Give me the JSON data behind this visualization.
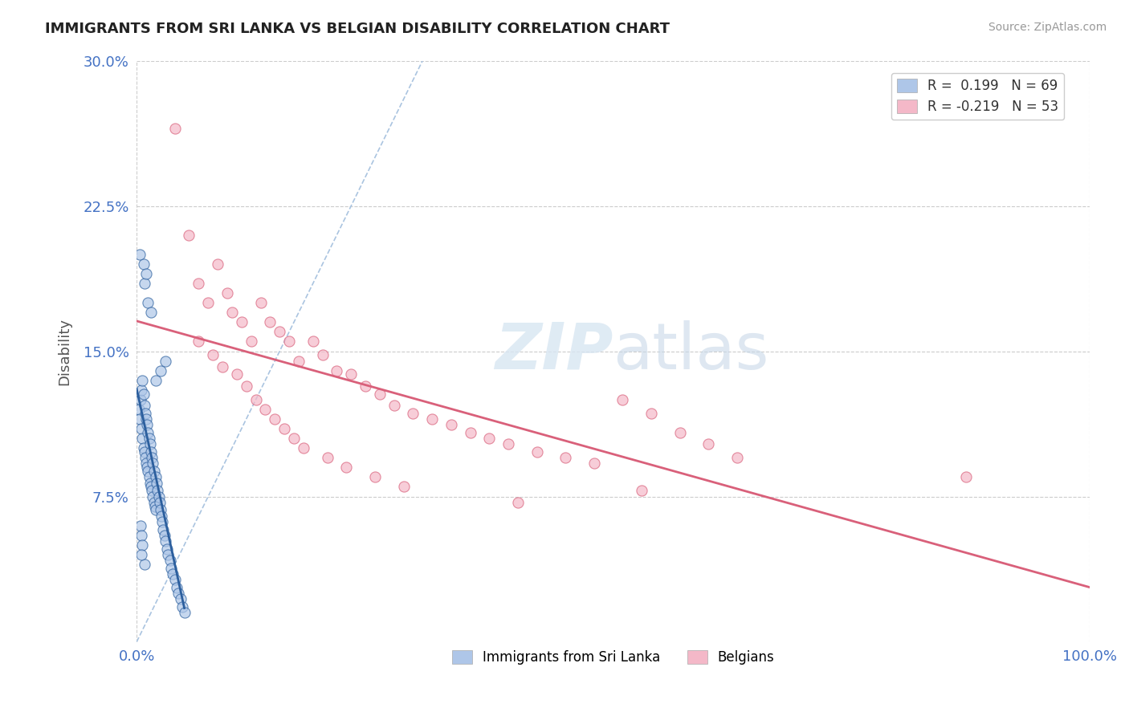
{
  "title": "IMMIGRANTS FROM SRI LANKA VS BELGIAN DISABILITY CORRELATION CHART",
  "source": "Source: ZipAtlas.com",
  "ylabel": "Disability",
  "watermark": "ZIPatlas",
  "legend_label_1": "Immigrants from Sri Lanka",
  "legend_label_2": "Belgians",
  "r1": 0.199,
  "n1": 69,
  "r2": -0.219,
  "n2": 53,
  "xlim": [
    0.0,
    1.0
  ],
  "ylim": [
    0.0,
    0.3
  ],
  "yticks": [
    0.075,
    0.15,
    0.225,
    0.3
  ],
  "ytick_labels": [
    "7.5%",
    "15.0%",
    "22.5%",
    "30.0%"
  ],
  "xticks": [
    0.0,
    1.0
  ],
  "xtick_labels": [
    "0.0%",
    "100.0%"
  ],
  "color_blue": "#aec6e8",
  "color_pink": "#f4b8c8",
  "trendline_blue": "#2c5f9e",
  "trendline_pink": "#d9607a",
  "background_color": "#ffffff",
  "grid_color": "#cccccc",
  "title_color": "#222222",
  "axis_label_color": "#4472c4",
  "blue_scatter_x": [
    0.002,
    0.003,
    0.004,
    0.005,
    0.005,
    0.006,
    0.006,
    0.007,
    0.007,
    0.008,
    0.008,
    0.009,
    0.009,
    0.01,
    0.01,
    0.011,
    0.011,
    0.012,
    0.012,
    0.013,
    0.013,
    0.014,
    0.014,
    0.015,
    0.015,
    0.016,
    0.016,
    0.017,
    0.017,
    0.018,
    0.018,
    0.019,
    0.02,
    0.02,
    0.021,
    0.022,
    0.023,
    0.024,
    0.025,
    0.026,
    0.027,
    0.028,
    0.029,
    0.03,
    0.032,
    0.033,
    0.035,
    0.036,
    0.038,
    0.04,
    0.042,
    0.044,
    0.046,
    0.048,
    0.05,
    0.003,
    0.007,
    0.008,
    0.01,
    0.012,
    0.015,
    0.004,
    0.005,
    0.006,
    0.02,
    0.025,
    0.03,
    0.008,
    0.005
  ],
  "blue_scatter_y": [
    0.12,
    0.115,
    0.125,
    0.11,
    0.13,
    0.105,
    0.135,
    0.1,
    0.128,
    0.098,
    0.122,
    0.095,
    0.118,
    0.092,
    0.115,
    0.09,
    0.112,
    0.088,
    0.108,
    0.085,
    0.105,
    0.082,
    0.102,
    0.08,
    0.098,
    0.078,
    0.095,
    0.075,
    0.092,
    0.072,
    0.088,
    0.07,
    0.085,
    0.068,
    0.082,
    0.078,
    0.075,
    0.072,
    0.068,
    0.065,
    0.062,
    0.058,
    0.055,
    0.052,
    0.048,
    0.045,
    0.042,
    0.038,
    0.035,
    0.032,
    0.028,
    0.025,
    0.022,
    0.018,
    0.015,
    0.2,
    0.195,
    0.185,
    0.19,
    0.175,
    0.17,
    0.06,
    0.055,
    0.05,
    0.135,
    0.14,
    0.145,
    0.04,
    0.045
  ],
  "pink_scatter_x": [
    0.04,
    0.055,
    0.065,
    0.075,
    0.085,
    0.095,
    0.1,
    0.11,
    0.12,
    0.13,
    0.14,
    0.15,
    0.16,
    0.17,
    0.185,
    0.195,
    0.21,
    0.225,
    0.24,
    0.255,
    0.27,
    0.29,
    0.31,
    0.33,
    0.35,
    0.37,
    0.39,
    0.42,
    0.45,
    0.48,
    0.51,
    0.54,
    0.57,
    0.6,
    0.63,
    0.065,
    0.08,
    0.09,
    0.105,
    0.115,
    0.125,
    0.135,
    0.145,
    0.155,
    0.165,
    0.175,
    0.2,
    0.22,
    0.25,
    0.28,
    0.87,
    0.53,
    0.4
  ],
  "pink_scatter_y": [
    0.265,
    0.21,
    0.185,
    0.175,
    0.195,
    0.18,
    0.17,
    0.165,
    0.155,
    0.175,
    0.165,
    0.16,
    0.155,
    0.145,
    0.155,
    0.148,
    0.14,
    0.138,
    0.132,
    0.128,
    0.122,
    0.118,
    0.115,
    0.112,
    0.108,
    0.105,
    0.102,
    0.098,
    0.095,
    0.092,
    0.125,
    0.118,
    0.108,
    0.102,
    0.095,
    0.155,
    0.148,
    0.142,
    0.138,
    0.132,
    0.125,
    0.12,
    0.115,
    0.11,
    0.105,
    0.1,
    0.095,
    0.09,
    0.085,
    0.08,
    0.085,
    0.078,
    0.072
  ]
}
